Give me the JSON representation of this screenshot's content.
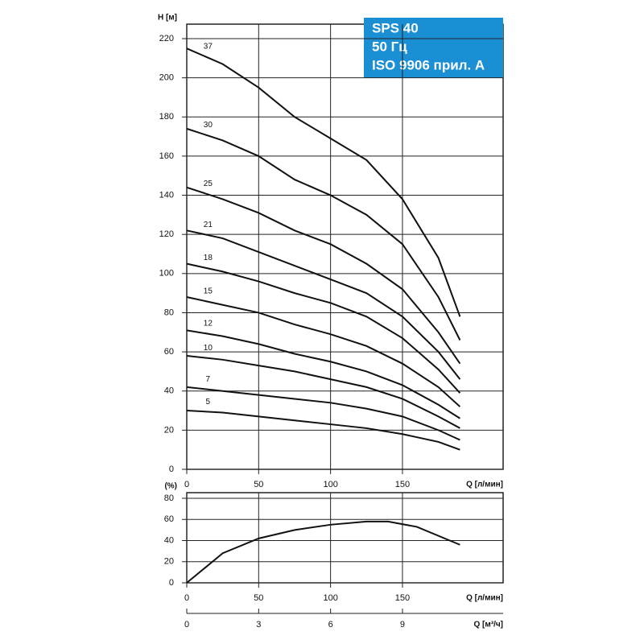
{
  "chart_data": [
    {
      "type": "line",
      "title": [
        "SPS 40",
        "50 Гц",
        "ISO 9906 прил. A"
      ],
      "y_label": "H [м]",
      "x_label": "Q [л/мин]",
      "x": [
        0,
        25,
        50,
        75,
        100,
        125,
        150,
        175,
        190
      ],
      "xlim": [
        0,
        220
      ],
      "xticks": [
        0,
        50,
        100,
        150
      ],
      "ylim": [
        0,
        220
      ],
      "yticks": [
        0,
        20,
        40,
        60,
        80,
        100,
        120,
        140,
        160,
        180,
        200,
        220
      ],
      "grid": true,
      "series": [
        {
          "name": "37",
          "color": "#111111",
          "values": [
            215,
            207,
            195,
            180,
            169,
            158,
            138,
            108,
            78
          ]
        },
        {
          "name": "30",
          "color": "#111111",
          "values": [
            174,
            168,
            160,
            148,
            140,
            130,
            115,
            88,
            66
          ]
        },
        {
          "name": "25",
          "color": "#111111",
          "values": [
            144,
            138,
            131,
            122,
            115,
            105,
            92,
            70,
            54
          ]
        },
        {
          "name": "21",
          "color": "#111111",
          "values": [
            122,
            118,
            111,
            104,
            97,
            90,
            78,
            60,
            46
          ]
        },
        {
          "name": "18",
          "color": "#111111",
          "values": [
            105,
            101,
            96,
            90,
            85,
            78,
            67,
            51,
            39
          ]
        },
        {
          "name": "15",
          "color": "#111111",
          "values": [
            88,
            84,
            80,
            74,
            69,
            63,
            54,
            42,
            32
          ]
        },
        {
          "name": "12",
          "color": "#111111",
          "values": [
            71,
            68,
            64,
            59,
            55,
            50,
            43,
            33,
            26
          ]
        },
        {
          "name": "10",
          "color": "#111111",
          "values": [
            58,
            56,
            53,
            50,
            46,
            42,
            36,
            27,
            21
          ]
        },
        {
          "name": "7",
          "color": "#111111",
          "values": [
            42,
            40,
            38,
            36,
            34,
            31,
            27,
            20,
            15
          ]
        },
        {
          "name": "5",
          "color": "#111111",
          "values": [
            30,
            29,
            27,
            25,
            23,
            21,
            18,
            14,
            10
          ]
        }
      ]
    },
    {
      "type": "line",
      "y_label": "(%)",
      "x_label": "Q [л/мин]",
      "x2_label": "Q [м³/ч]",
      "x": [
        0,
        25,
        50,
        75,
        100,
        125,
        140,
        160,
        190
      ],
      "xlim": [
        0,
        220
      ],
      "xticks": [
        0,
        50,
        100,
        150
      ],
      "x2lim": [
        0,
        13.2
      ],
      "x2ticks": [
        0,
        3,
        6,
        9
      ],
      "ylim": [
        0,
        80
      ],
      "yticks": [
        0,
        20,
        40,
        60,
        80
      ],
      "grid": true,
      "series": [
        {
          "color": "#111111",
          "values": [
            0,
            28,
            42,
            50,
            55,
            58,
            58,
            53,
            36
          ]
        }
      ]
    }
  ]
}
